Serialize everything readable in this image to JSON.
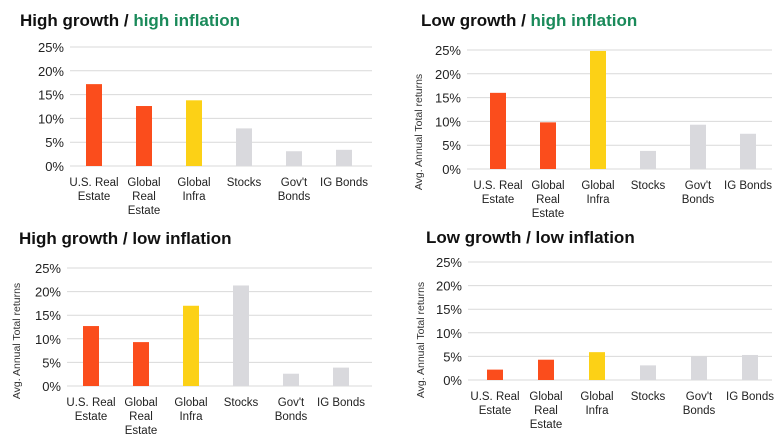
{
  "colors": {
    "us_real_estate": "#fb4d1c",
    "global_real_estate": "#fb4d1c",
    "global_infra": "#fcd116",
    "neutral": "#d9d9dd",
    "highlight_text": "#1a8a5a",
    "grid": "#d9d9d9"
  },
  "chart_data": [
    {
      "type": "bar",
      "title": "High growth / high inflation",
      "title_prefix": "High growth / ",
      "title_suffix": "high inflation",
      "title_suffix_highlight": true,
      "ylabel": "",
      "ylim": [
        0,
        25
      ],
      "yticks": [
        "0%",
        "5%",
        "10%",
        "15%",
        "20%",
        "25%"
      ],
      "categories": [
        [
          "U.S. Real",
          "Estate"
        ],
        [
          "Global",
          "Real",
          "Estate"
        ],
        [
          "Global",
          "Infra"
        ],
        [
          "Stocks"
        ],
        [
          "Gov't",
          "Bonds"
        ],
        [
          "IG Bonds"
        ]
      ],
      "values": [
        17.2,
        12.6,
        13.8,
        7.9,
        3.1,
        3.4
      ],
      "bar_colors": [
        "#fb4d1c",
        "#fb4d1c",
        "#fcd116",
        "#d9d9dd",
        "#d9d9dd",
        "#d9d9dd"
      ]
    },
    {
      "type": "bar",
      "title": "Low growth / high inflation",
      "title_prefix": "Low growth / ",
      "title_suffix": "high inflation",
      "title_suffix_highlight": true,
      "ylabel": "Avg. Annual Total returns",
      "ylim": [
        0,
        25
      ],
      "yticks": [
        "0%",
        "5%",
        "10%",
        "15%",
        "20%",
        "25%"
      ],
      "categories": [
        [
          "U.S. Real",
          "Estate"
        ],
        [
          "Global",
          "Real",
          "Estate"
        ],
        [
          "Global",
          "Infra"
        ],
        [
          "Stocks"
        ],
        [
          "Gov't",
          "Bonds"
        ],
        [
          "IG Bonds"
        ]
      ],
      "values": [
        16.0,
        9.8,
        24.8,
        3.8,
        9.3,
        7.4
      ],
      "bar_colors": [
        "#fb4d1c",
        "#fb4d1c",
        "#fcd116",
        "#d9d9dd",
        "#d9d9dd",
        "#d9d9dd"
      ]
    },
    {
      "type": "bar",
      "title": "High growth / low inflation",
      "title_prefix": "High growth / ",
      "title_suffix": "low inflation",
      "title_suffix_highlight": false,
      "ylabel": "Avg. Annual Total returns",
      "ylim": [
        0,
        25
      ],
      "yticks": [
        "0%",
        "5%",
        "10%",
        "15%",
        "20%",
        "25%"
      ],
      "categories": [
        [
          "U.S. Real",
          "Estate"
        ],
        [
          "Global",
          "Real",
          "Estate"
        ],
        [
          "Global",
          "Infra"
        ],
        [
          "Stocks"
        ],
        [
          "Gov't",
          "Bonds"
        ],
        [
          "IG Bonds"
        ]
      ],
      "values": [
        12.7,
        9.3,
        17.0,
        21.3,
        2.6,
        3.9
      ],
      "bar_colors": [
        "#fb4d1c",
        "#fb4d1c",
        "#fcd116",
        "#d9d9dd",
        "#d9d9dd",
        "#d9d9dd"
      ]
    },
    {
      "type": "bar",
      "title": "Low growth / low inflation",
      "title_prefix": "Low growth / ",
      "title_suffix": "low inflation",
      "title_suffix_highlight": false,
      "ylabel": "Avg. Annual Total returns",
      "ylim": [
        0,
        25
      ],
      "yticks": [
        "0%",
        "5%",
        "10%",
        "15%",
        "20%",
        "25%"
      ],
      "categories": [
        [
          "U.S. Real",
          "Estate"
        ],
        [
          "Global",
          "Real",
          "Estate"
        ],
        [
          "Global",
          "Infra"
        ],
        [
          "Stocks"
        ],
        [
          "Gov't",
          "Bonds"
        ],
        [
          "IG Bonds"
        ]
      ],
      "values": [
        2.2,
        4.3,
        5.9,
        3.1,
        5.0,
        5.3
      ],
      "bar_colors": [
        "#fb4d1c",
        "#fb4d1c",
        "#fcd116",
        "#d9d9dd",
        "#d9d9dd",
        "#d9d9dd"
      ]
    }
  ]
}
